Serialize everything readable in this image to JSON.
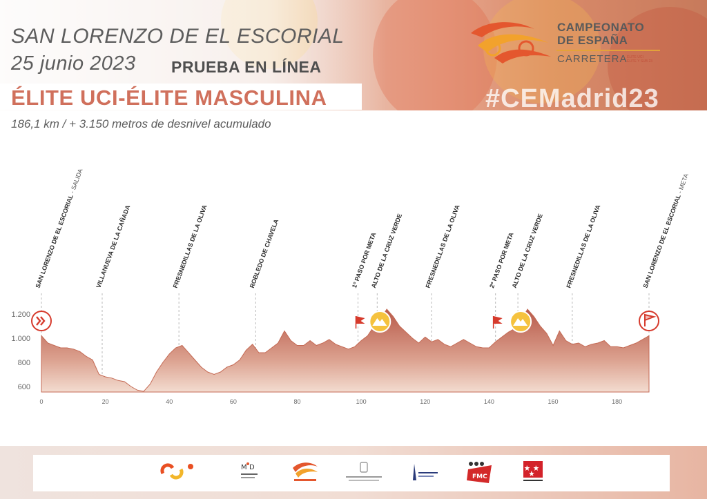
{
  "header": {
    "location": "SAN LORENZO DE EL ESCORIAL",
    "date": "25 junio 2023",
    "race_type": "PRUEBA EN LÍNEA",
    "category": "ÉLITE UCI-ÉLITE MASCULINA",
    "distance_line": "186,1 km / + 3.150 metros de desnivel acumulado",
    "hashtag": "#CEMadrid23"
  },
  "event_logo": {
    "line1": "CAMPEONATO",
    "line2": "DE ESPAÑA",
    "line3": "CARRETERA",
    "mini1": "ÉLITE UCI",
    "mini2": "ÉLITE Y SUB 23",
    "icon": "cyclist-swoosh-logo"
  },
  "sponsors": [
    {
      "name": "Consejo Superior de Deportes",
      "icon": "csd-logo"
    },
    {
      "name": "Programa Mujer y Deporte",
      "icon": "myd-logo"
    },
    {
      "name": "Real Federación Española de Ciclismo",
      "icon": "rfec-logo"
    },
    {
      "name": "Ayuntamiento San Lorenzo de El Escorial",
      "icon": "ayuntamiento-escorial-logo"
    },
    {
      "name": "Ayuntamiento de Sevilla la Nueva",
      "icon": "sevilla-la-nueva-logo"
    },
    {
      "name": "FMC",
      "icon": "fmc-logo"
    },
    {
      "name": "Comunidad de Madrid",
      "icon": "comunidad-madrid-logo"
    }
  ],
  "colors": {
    "accent": "#d0705c",
    "profile_top": "#b85a4a",
    "profile_bottom": "#f0d8cc",
    "badge_yellow": "#f5c23e",
    "flag_red": "#d63a2c"
  },
  "chart_data": {
    "type": "area",
    "xlabel": "",
    "ylabel": "",
    "xlim": [
      0,
      190
    ],
    "ylim": [
      550,
      1250
    ],
    "x_ticks": [
      0,
      20,
      40,
      60,
      80,
      100,
      120,
      140,
      160,
      180
    ],
    "y_ticks": [
      {
        "value": 600,
        "label": "600"
      },
      {
        "value": 800,
        "label": "800"
      },
      {
        "value": 1000,
        "label": "1.000"
      },
      {
        "value": 1200,
        "label": "1.200"
      }
    ],
    "profile": [
      {
        "x": 0,
        "y": 1020
      },
      {
        "x": 2,
        "y": 960
      },
      {
        "x": 4,
        "y": 940
      },
      {
        "x": 6,
        "y": 920
      },
      {
        "x": 8,
        "y": 920
      },
      {
        "x": 10,
        "y": 910
      },
      {
        "x": 12,
        "y": 890
      },
      {
        "x": 14,
        "y": 850
      },
      {
        "x": 16,
        "y": 820
      },
      {
        "x": 18,
        "y": 700
      },
      {
        "x": 20,
        "y": 680
      },
      {
        "x": 22,
        "y": 670
      },
      {
        "x": 24,
        "y": 650
      },
      {
        "x": 26,
        "y": 640
      },
      {
        "x": 28,
        "y": 600
      },
      {
        "x": 30,
        "y": 570
      },
      {
        "x": 32,
        "y": 560
      },
      {
        "x": 34,
        "y": 620
      },
      {
        "x": 36,
        "y": 720
      },
      {
        "x": 38,
        "y": 800
      },
      {
        "x": 40,
        "y": 870
      },
      {
        "x": 42,
        "y": 920
      },
      {
        "x": 44,
        "y": 940
      },
      {
        "x": 46,
        "y": 880
      },
      {
        "x": 48,
        "y": 820
      },
      {
        "x": 50,
        "y": 760
      },
      {
        "x": 52,
        "y": 720
      },
      {
        "x": 54,
        "y": 700
      },
      {
        "x": 56,
        "y": 720
      },
      {
        "x": 58,
        "y": 760
      },
      {
        "x": 60,
        "y": 780
      },
      {
        "x": 62,
        "y": 820
      },
      {
        "x": 64,
        "y": 900
      },
      {
        "x": 66,
        "y": 950
      },
      {
        "x": 68,
        "y": 880
      },
      {
        "x": 70,
        "y": 880
      },
      {
        "x": 72,
        "y": 920
      },
      {
        "x": 74,
        "y": 960
      },
      {
        "x": 76,
        "y": 1060
      },
      {
        "x": 78,
        "y": 980
      },
      {
        "x": 80,
        "y": 940
      },
      {
        "x": 82,
        "y": 940
      },
      {
        "x": 84,
        "y": 980
      },
      {
        "x": 86,
        "y": 940
      },
      {
        "x": 88,
        "y": 960
      },
      {
        "x": 90,
        "y": 990
      },
      {
        "x": 92,
        "y": 950
      },
      {
        "x": 94,
        "y": 930
      },
      {
        "x": 96,
        "y": 910
      },
      {
        "x": 98,
        "y": 930
      },
      {
        "x": 100,
        "y": 980
      },
      {
        "x": 102,
        "y": 1020
      },
      {
        "x": 104,
        "y": 1100
      },
      {
        "x": 106,
        "y": 1130
      },
      {
        "x": 107,
        "y": 1200
      },
      {
        "x": 108,
        "y": 1240
      },
      {
        "x": 110,
        "y": 1180
      },
      {
        "x": 112,
        "y": 1100
      },
      {
        "x": 114,
        "y": 1050
      },
      {
        "x": 116,
        "y": 1000
      },
      {
        "x": 118,
        "y": 960
      },
      {
        "x": 120,
        "y": 1010
      },
      {
        "x": 122,
        "y": 970
      },
      {
        "x": 124,
        "y": 990
      },
      {
        "x": 126,
        "y": 950
      },
      {
        "x": 128,
        "y": 930
      },
      {
        "x": 130,
        "y": 960
      },
      {
        "x": 132,
        "y": 990
      },
      {
        "x": 134,
        "y": 960
      },
      {
        "x": 136,
        "y": 930
      },
      {
        "x": 138,
        "y": 920
      },
      {
        "x": 140,
        "y": 920
      },
      {
        "x": 142,
        "y": 970
      },
      {
        "x": 144,
        "y": 1010
      },
      {
        "x": 146,
        "y": 1050
      },
      {
        "x": 148,
        "y": 1080
      },
      {
        "x": 150,
        "y": 1150
      },
      {
        "x": 152,
        "y": 1240
      },
      {
        "x": 154,
        "y": 1180
      },
      {
        "x": 156,
        "y": 1100
      },
      {
        "x": 158,
        "y": 1040
      },
      {
        "x": 160,
        "y": 940
      },
      {
        "x": 162,
        "y": 1060
      },
      {
        "x": 164,
        "y": 980
      },
      {
        "x": 166,
        "y": 950
      },
      {
        "x": 168,
        "y": 960
      },
      {
        "x": 170,
        "y": 930
      },
      {
        "x": 172,
        "y": 950
      },
      {
        "x": 174,
        "y": 960
      },
      {
        "x": 176,
        "y": 980
      },
      {
        "x": 178,
        "y": 930
      },
      {
        "x": 180,
        "y": 930
      },
      {
        "x": 182,
        "y": 920
      },
      {
        "x": 184,
        "y": 940
      },
      {
        "x": 186,
        "y": 960
      },
      {
        "x": 188,
        "y": 990
      },
      {
        "x": 190,
        "y": 1020
      }
    ],
    "waypoints": [
      {
        "km": 0,
        "label": "SAN LORENZO DE EL ESCORIAL",
        "suffix": " - SALIDA",
        "marker": "start",
        "icon": "start-chevron-icon"
      },
      {
        "km": 19,
        "label": "VILLANUEVA DE LA CAÑADA",
        "suffix": "",
        "marker": "none"
      },
      {
        "km": 43,
        "label": "FRESNEDILLAS DE LA OLIVA",
        "suffix": "",
        "marker": "none"
      },
      {
        "km": 67,
        "label": "ROBLEDO DE CHAVELA",
        "suffix": "",
        "marker": "none"
      },
      {
        "km": 99,
        "label": "1º PASO POR META",
        "suffix": "",
        "marker": "flag",
        "icon": "red-flag-icon"
      },
      {
        "km": 105,
        "label": "ALTO DE LA CRUZ VERDE",
        "suffix": "",
        "marker": "mountain",
        "icon": "mountain-badge-icon"
      },
      {
        "km": 122,
        "label": "FRESNEDILLAS DE LA OLIVA",
        "suffix": "",
        "marker": "none"
      },
      {
        "km": 142,
        "label": "2º PASO POR META",
        "suffix": "",
        "marker": "flag",
        "icon": "red-flag-icon"
      },
      {
        "km": 149,
        "label": "ALTO DE LA CRUZ VERDE",
        "suffix": "",
        "marker": "mountain",
        "icon": "mountain-badge-icon"
      },
      {
        "km": 166,
        "label": "FRESNEDILLAS DE LA OLIVA",
        "suffix": "",
        "marker": "none"
      },
      {
        "km": 190,
        "label": "SAN LORENZO DE EL ESCORIAL",
        "suffix": " - META",
        "marker": "finish",
        "icon": "finish-flag-icon"
      }
    ]
  }
}
